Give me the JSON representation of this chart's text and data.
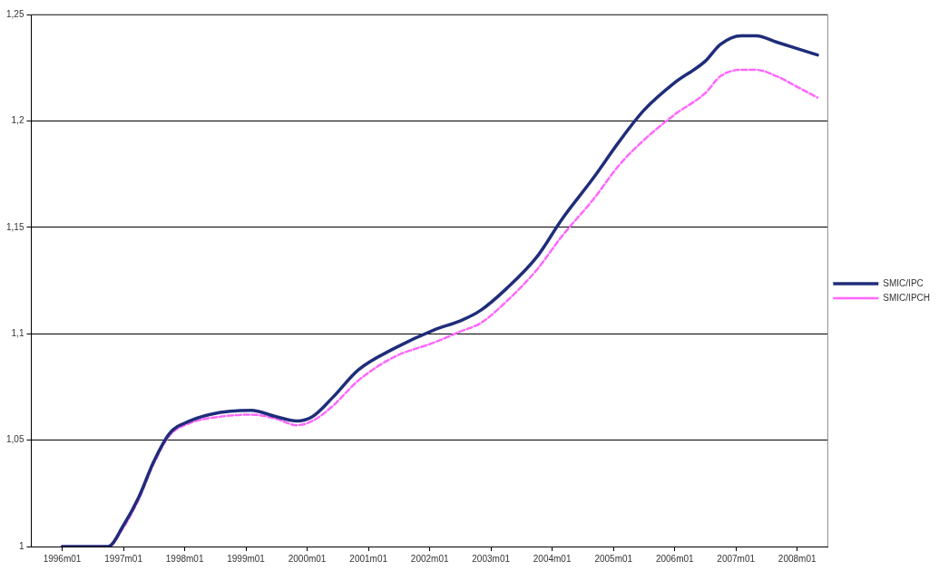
{
  "chart_data": {
    "type": "line",
    "xlim": [
      "1995-07",
      "2008-07"
    ],
    "ylim": [
      1,
      1.25
    ],
    "xticks": [
      {
        "value": "1996-01",
        "label": "1996m01"
      },
      {
        "value": "1997-01",
        "label": "1997m01"
      },
      {
        "value": "1998-01",
        "label": "1998m01"
      },
      {
        "value": "1999-01",
        "label": "1999m01"
      },
      {
        "value": "2000-01",
        "label": "2000m01"
      },
      {
        "value": "2001-01",
        "label": "2001m01"
      },
      {
        "value": "2002-01",
        "label": "2002m01"
      },
      {
        "value": "2003-01",
        "label": "2003m01"
      },
      {
        "value": "2004-01",
        "label": "2004m01"
      },
      {
        "value": "2005-01",
        "label": "2005m01"
      },
      {
        "value": "2006-01",
        "label": "2006m01"
      },
      {
        "value": "2007-01",
        "label": "2007m01"
      },
      {
        "value": "2008-01",
        "label": "2008m01"
      }
    ],
    "yticks": [
      {
        "value": 1,
        "label": "1"
      },
      {
        "value": 1.05,
        "label": "1,05"
      },
      {
        "value": 1.1,
        "label": "1,1"
      },
      {
        "value": 1.15,
        "label": "1,15"
      },
      {
        "value": 1.2,
        "label": "1,2"
      },
      {
        "value": 1.25,
        "label": "1,25"
      }
    ],
    "x": [
      "1996-01",
      "1996-10",
      "1997-01",
      "1997-04",
      "1997-07",
      "1997-10",
      "1998-02",
      "1998-08",
      "1999-02",
      "1999-07",
      "1999-11",
      "2000-02",
      "2000-06",
      "2000-11",
      "2001-06",
      "2002-02",
      "2002-07",
      "2002-11",
      "2003-04",
      "2003-10",
      "2004-03",
      "2004-09",
      "2005-02",
      "2005-07",
      "2006-01",
      "2006-07",
      "2006-10",
      "2007-02",
      "2007-05",
      "2007-09",
      "2008-01",
      "2008-05"
    ],
    "grid": "y",
    "legend": "right",
    "marker": "none",
    "series": [
      {
        "name": "SMIC/IPC",
        "color": "#1f2d7a",
        "line_style": "solid",
        "values": [
          1.0,
          1.0,
          1.01,
          1.023,
          1.04,
          1.053,
          1.059,
          1.063,
          1.064,
          1.061,
          1.059,
          1.061,
          1.07,
          1.083,
          1.093,
          1.102,
          1.106,
          1.111,
          1.121,
          1.136,
          1.154,
          1.173,
          1.19,
          1.205,
          1.218,
          1.228,
          1.236,
          1.24,
          1.24,
          1.237,
          1.234,
          1.231
        ]
      },
      {
        "name": "SMIC/IPCH",
        "color": "#ff66ff",
        "line_style": "dashed",
        "values": [
          1.0,
          1.0,
          1.009,
          1.022,
          1.039,
          1.052,
          1.058,
          1.061,
          1.062,
          1.06,
          1.057,
          1.059,
          1.066,
          1.078,
          1.089,
          1.096,
          1.101,
          1.105,
          1.115,
          1.13,
          1.146,
          1.163,
          1.179,
          1.191,
          1.203,
          1.213,
          1.221,
          1.224,
          1.224,
          1.221,
          1.216,
          1.211
        ]
      }
    ]
  }
}
